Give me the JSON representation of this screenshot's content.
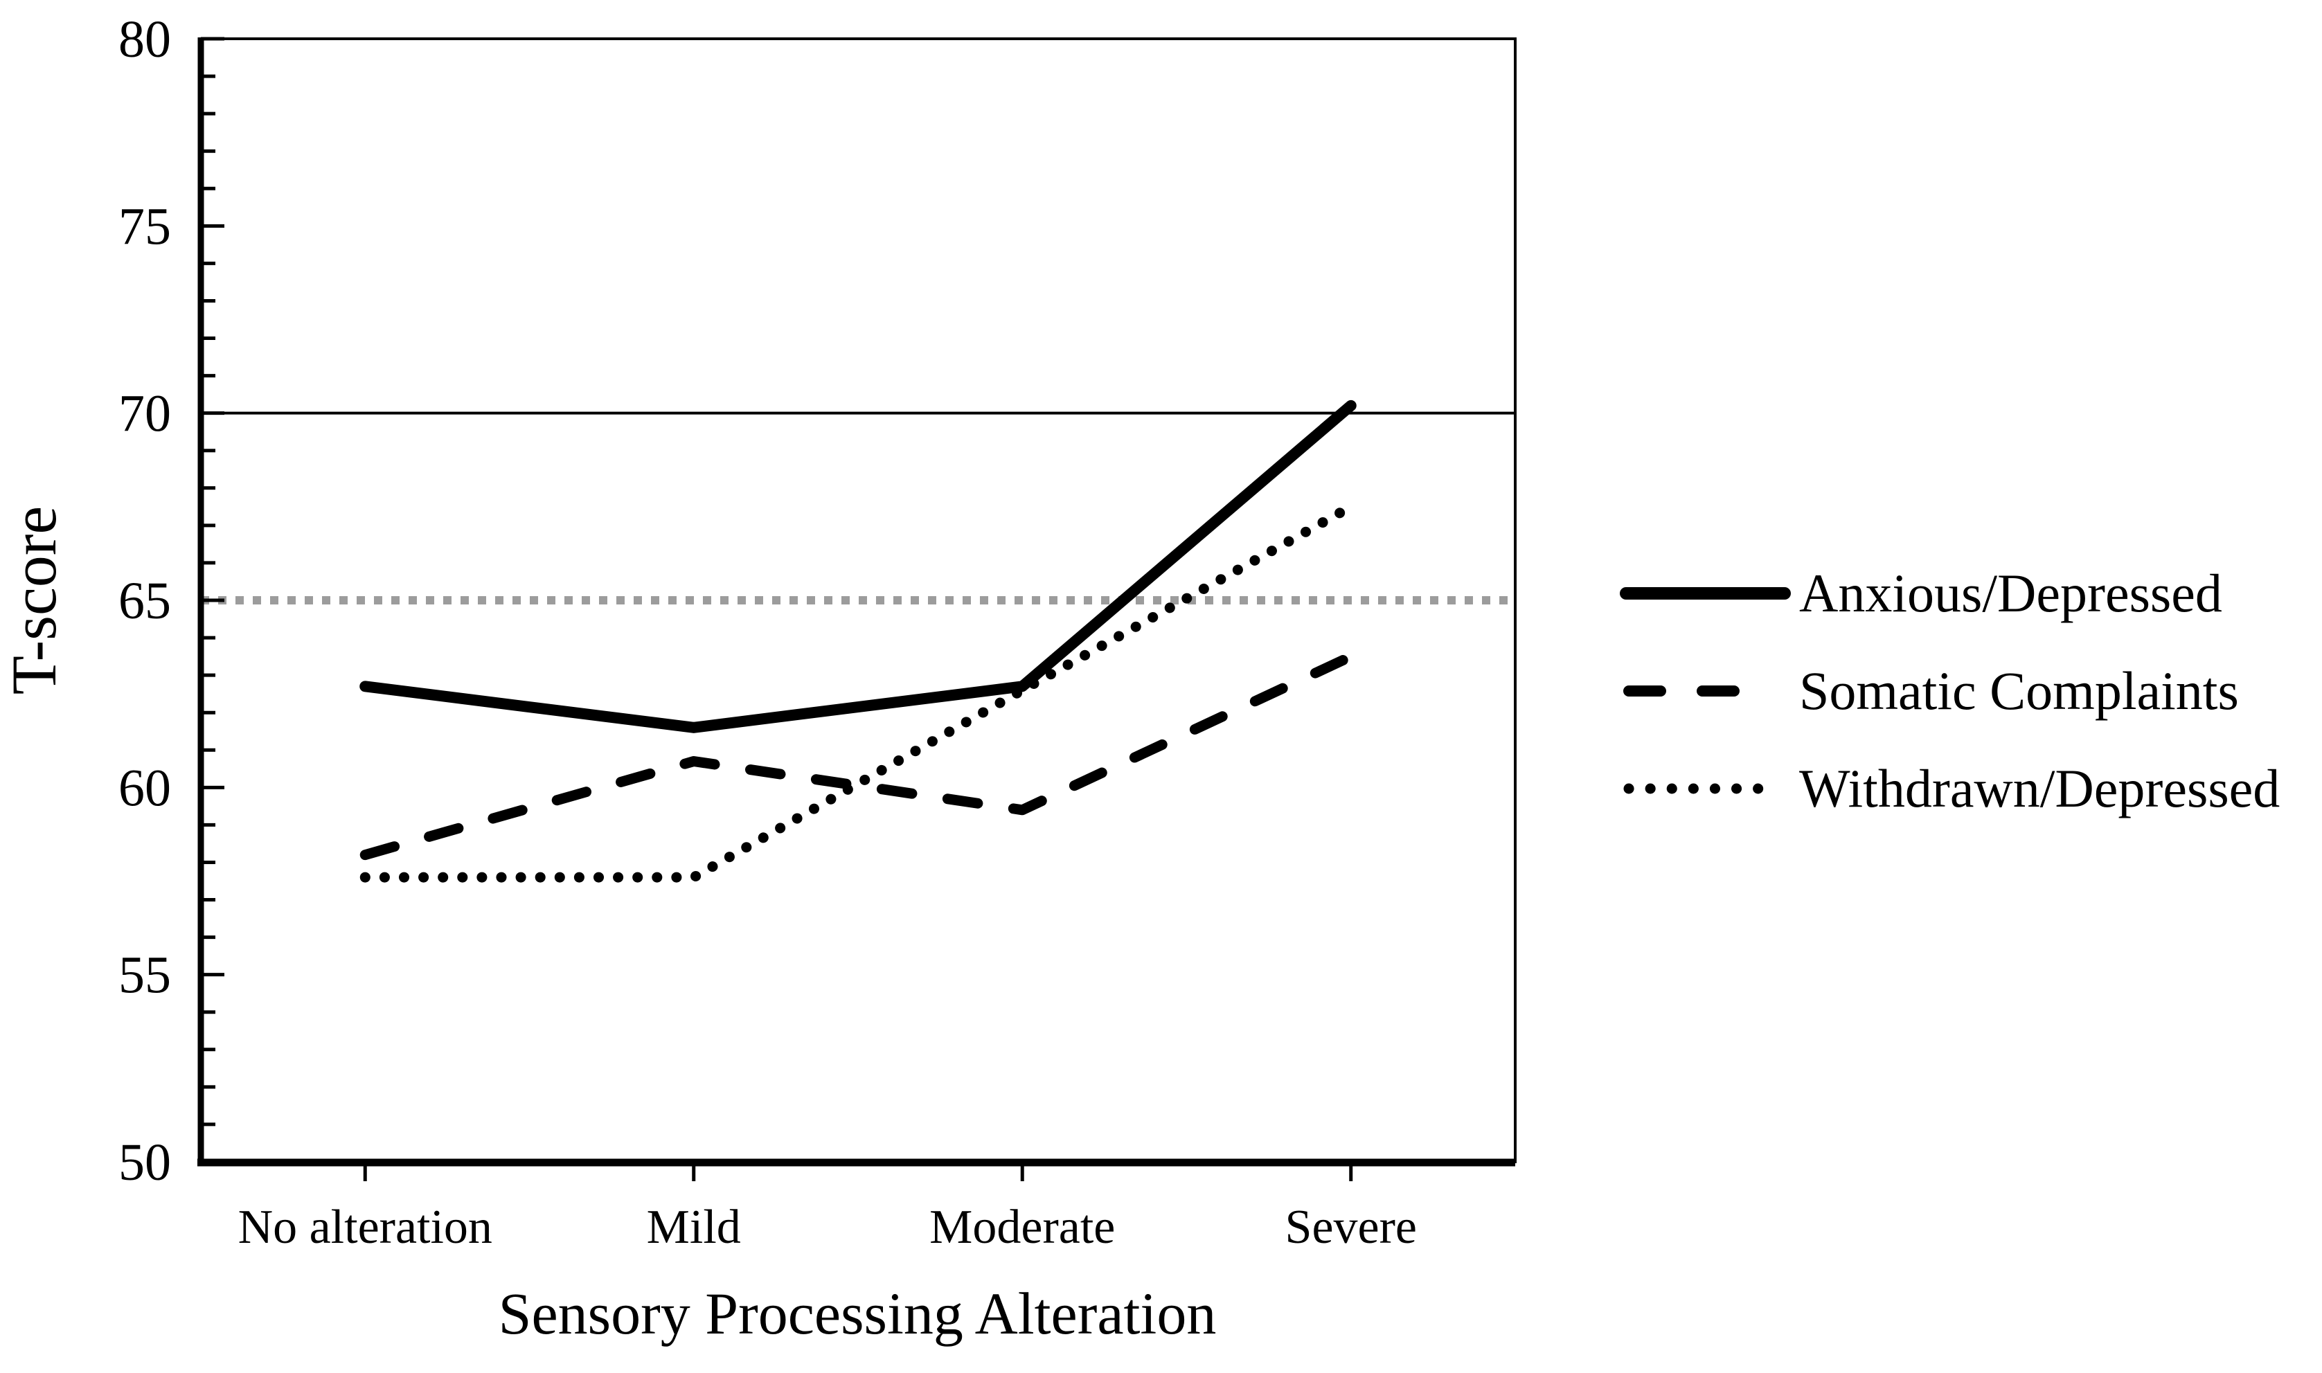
{
  "figure": {
    "background_color": "#ffffff",
    "text_color": "#000000"
  },
  "chart_data": {
    "type": "line",
    "title": "",
    "xlabel": "Sensory Processing Alteration",
    "ylabel": "T-score",
    "categories": [
      "No alteration",
      "Mild",
      "Moderate",
      "Severe"
    ],
    "series": [
      {
        "name": "Anxious/Depressed",
        "line_style": "solid",
        "color": "#000000",
        "values": [
          62.7,
          61.6,
          62.7,
          70.2
        ]
      },
      {
        "name": "Somatic Complaints",
        "line_style": "dashed",
        "color": "#000000",
        "values": [
          58.2,
          60.7,
          59.4,
          63.5
        ]
      },
      {
        "name": "Withdrawn/Depressed",
        "line_style": "dotted",
        "color": "#000000",
        "values": [
          57.6,
          57.6,
          62.6,
          67.5
        ]
      }
    ],
    "reference_lines": [
      {
        "value": 70,
        "line_style": "solid",
        "color": "#000000",
        "name": "clinical-cutoff"
      },
      {
        "value": 65,
        "line_style": "dotted",
        "color": "#9c9c9c",
        "name": "borderline-cutoff"
      }
    ],
    "ylim": [
      50,
      80
    ],
    "yticks": [
      50,
      55,
      60,
      65,
      70,
      75,
      80
    ],
    "y_minor_tick_step": 1,
    "grid": false,
    "legend_position": "right"
  }
}
